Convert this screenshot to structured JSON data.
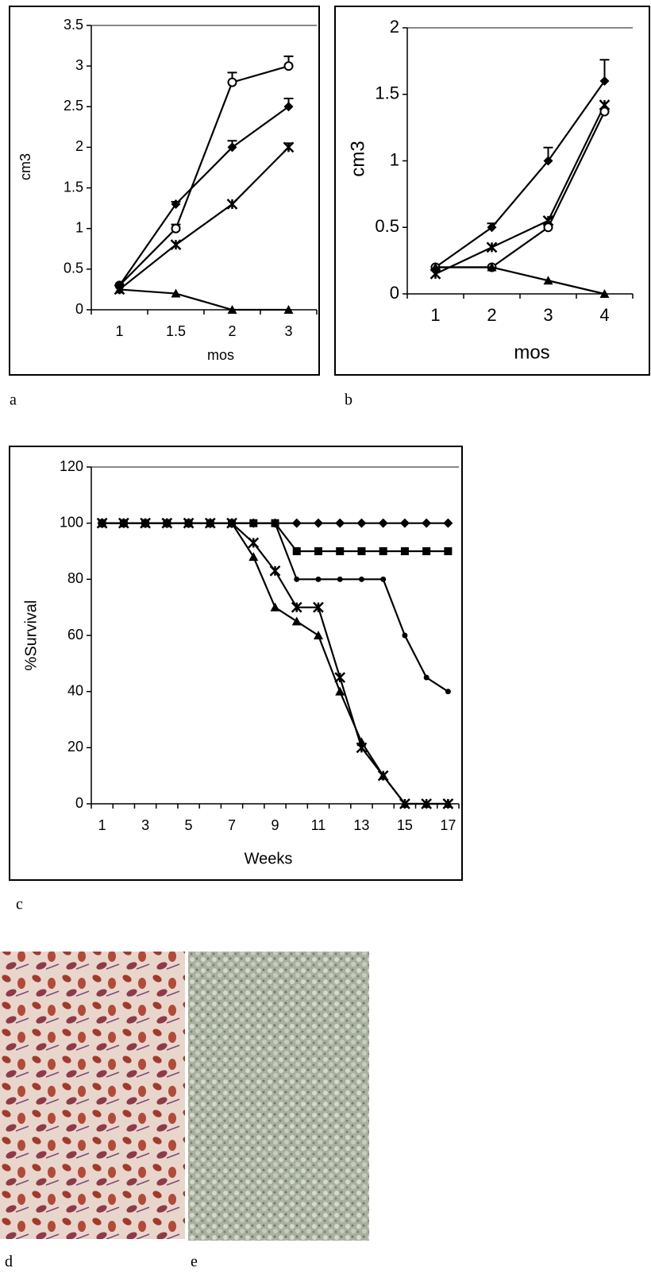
{
  "chart_data": [
    {
      "type": "line",
      "x_label": "mos",
      "y_label": "cm3",
      "categories": [
        "1",
        "1.5",
        "2",
        "3"
      ],
      "ylim": [
        0,
        3.5
      ],
      "yticks": [
        0,
        0.5,
        1,
        1.5,
        2,
        2.5,
        3,
        3.5
      ],
      "series": [
        {
          "color": "#000000",
          "marker": "circle-open",
          "values": [
            0.3,
            1.0,
            2.8,
            3.0
          ],
          "errors": [
            null,
            0.05,
            0.12,
            0.12
          ]
        },
        {
          "color": "#000000",
          "marker": "diamond",
          "values": [
            0.3,
            1.3,
            2.0,
            2.5
          ],
          "errors": [
            null,
            0.03,
            0.08,
            0.1
          ]
        },
        {
          "color": "#000000",
          "marker": "star",
          "values": [
            0.25,
            0.8,
            1.3,
            2.0
          ],
          "errors": [
            null,
            null,
            null,
            0.05
          ]
        },
        {
          "color": "#000000",
          "marker": "triangle",
          "values": [
            0.25,
            0.2,
            0,
            0
          ]
        }
      ]
    },
    {
      "type": "line",
      "x_label": "mos",
      "y_label": "cm3",
      "categories": [
        "1",
        "2",
        "3",
        "4"
      ],
      "ylim": [
        0,
        2
      ],
      "yticks": [
        0,
        0.5,
        1,
        1.5,
        2
      ],
      "series": [
        {
          "color": "#000000",
          "marker": "diamond",
          "values": [
            0.2,
            0.5,
            1.0,
            1.6
          ],
          "errors": [
            null,
            0.03,
            0.1,
            0.16
          ]
        },
        {
          "color": "#000000",
          "marker": "star",
          "values": [
            0.15,
            0.35,
            0.55,
            1.42
          ]
        },
        {
          "color": "#000000",
          "marker": "circle-open",
          "values": [
            0.2,
            0.2,
            0.5,
            1.37
          ]
        },
        {
          "color": "#000000",
          "marker": "triangle",
          "values": [
            0.2,
            0.2,
            0.1,
            0
          ]
        }
      ]
    },
    {
      "type": "line",
      "x_label": "Weeks",
      "y_label": "%Survival",
      "categories": [
        "1",
        null,
        "3",
        null,
        "5",
        null,
        "7",
        null,
        "9",
        null,
        "11",
        null,
        "13",
        null,
        "15",
        null,
        "17"
      ],
      "ylim": [
        0,
        120
      ],
      "yticks": [
        0,
        20,
        40,
        60,
        80,
        100,
        120
      ],
      "series": [
        {
          "color": "#000000",
          "marker": "diamond",
          "values": [
            100,
            100,
            100,
            100,
            100,
            100,
            100,
            100,
            100,
            100,
            100,
            100,
            100,
            100,
            100,
            100,
            100
          ]
        },
        {
          "color": "#000000",
          "marker": "square",
          "values": [
            100,
            100,
            100,
            100,
            100,
            100,
            100,
            100,
            100,
            90,
            90,
            90,
            90,
            90,
            90,
            90,
            90
          ]
        },
        {
          "color": "#000000",
          "marker": "dot",
          "values": [
            100,
            100,
            100,
            100,
            100,
            100,
            100,
            100,
            100,
            80,
            80,
            80,
            80,
            80,
            60,
            45,
            40
          ]
        },
        {
          "color": "#000000",
          "marker": "star",
          "values": [
            100,
            100,
            100,
            100,
            100,
            100,
            100,
            93,
            83,
            70,
            70,
            45,
            20,
            10,
            0,
            0,
            0
          ]
        },
        {
          "color": "#000000",
          "marker": "triangle",
          "values": [
            100,
            100,
            100,
            100,
            100,
            100,
            100,
            88,
            70,
            65,
            60,
            40,
            22,
            10,
            0,
            0,
            0
          ]
        }
      ]
    }
  ],
  "panel_labels": [
    "a",
    "b",
    "c",
    "d",
    "e"
  ]
}
